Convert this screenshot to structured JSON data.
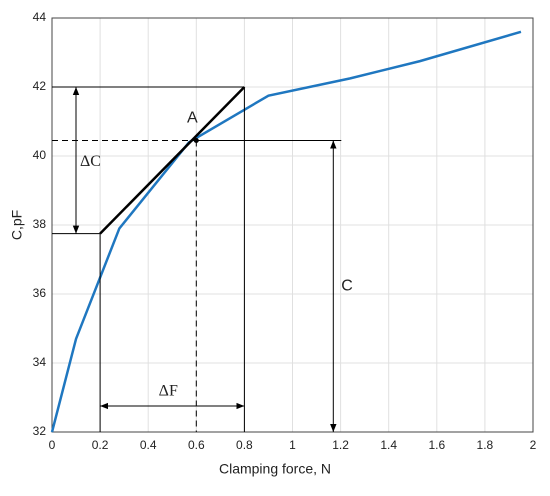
{
  "chart_data": {
    "type": "line",
    "x": [
      0,
      0.1,
      0.28,
      0.57,
      0.9,
      1.24,
      1.53,
      1.95
    ],
    "values": [
      32.0,
      34.7,
      37.9,
      40.4,
      41.75,
      42.25,
      42.75,
      43.6
    ],
    "color": "#1f77c0",
    "x_label": "Clamping force, N",
    "y_label": "C,pF",
    "xlim": [
      0,
      2
    ],
    "xticks": [
      0,
      0.2,
      0.4,
      0.6,
      0.8,
      1,
      1.2,
      1.4,
      1.6,
      1.8,
      2
    ],
    "ylim": [
      32,
      44
    ],
    "yticks": [
      32,
      34,
      36,
      38,
      40,
      42,
      44
    ],
    "grid": true,
    "tangent": {
      "x": [
        0.2,
        0.8
      ],
      "y": [
        37.75,
        42.0
      ]
    },
    "point": {
      "x": 0.6,
      "y": 40.45,
      "label": "A"
    },
    "delta_c_label": "ΔC",
    "delta_f_label": "ΔF",
    "c_label": "C"
  }
}
